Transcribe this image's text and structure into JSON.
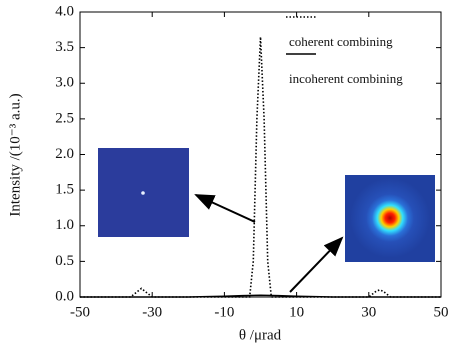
{
  "chart_data": {
    "type": "line",
    "xlabel": "θ /μrad",
    "ylabel": "Intensity /(10⁻³ a.u.)",
    "xlim": [
      -50,
      50
    ],
    "xticks": [
      -50,
      -30,
      -10,
      10,
      30,
      50
    ],
    "ylim": [
      0,
      4
    ],
    "yticks": [
      {
        "value": 0,
        "label": "0.0"
      },
      0.5,
      {
        "value": 1,
        "label": "1.0"
      },
      1.5,
      {
        "value": 2,
        "label": "2.0"
      },
      2.5,
      {
        "value": 3,
        "label": "3.0"
      },
      3.5,
      {
        "value": 4,
        "label": "4.0"
      }
    ],
    "legend": "upper right",
    "series": [
      {
        "name": "coherent combining",
        "color": "#000000",
        "style": "dotted",
        "x": [
          -50,
          -36,
          -34,
          -33,
          -32,
          -30,
          -3,
          -2,
          -1,
          0,
          1,
          2,
          3,
          30,
          32,
          33,
          34,
          36,
          50
        ],
        "values": [
          0,
          0,
          0.08,
          0.12,
          0.08,
          0,
          0,
          0.5,
          2.5,
          3.65,
          2.5,
          0.5,
          0,
          0,
          0.08,
          0.1,
          0.08,
          0,
          0
        ]
      },
      {
        "name": "incoherent combining",
        "color": "#000000",
        "style": "solid",
        "x": [
          -50,
          -20,
          -10,
          -5,
          0,
          5,
          10,
          20,
          50
        ],
        "values": [
          0,
          0,
          0.01,
          0.02,
          0.025,
          0.02,
          0.01,
          0,
          0
        ]
      }
    ]
  }
}
